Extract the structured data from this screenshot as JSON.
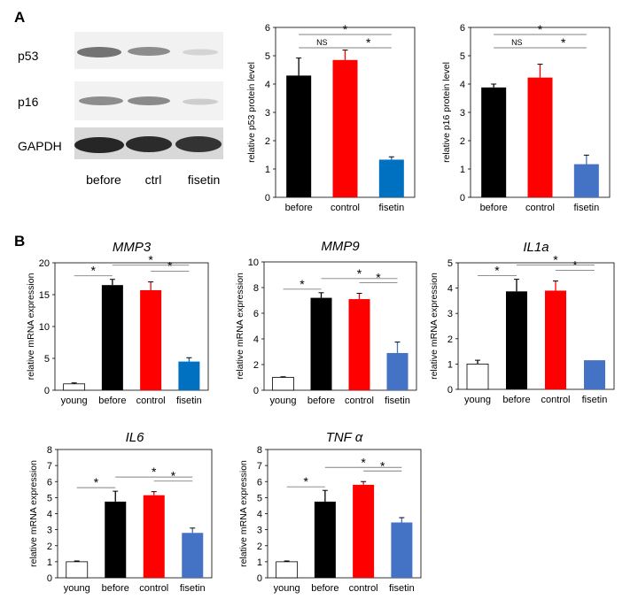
{
  "panels": [
    {
      "label": "A"
    },
    {
      "label": "B"
    }
  ],
  "western_blot": {
    "rows": [
      "p53",
      "p16",
      "GAPDH"
    ],
    "lanes": [
      "before",
      "ctrl",
      "fisetin"
    ]
  },
  "chart_data": [
    {
      "type": "bar",
      "title": "",
      "ylabel": "relative p53 protein level",
      "xlabel": "",
      "categories": [
        "before",
        "control",
        "fisetin"
      ],
      "values": [
        4.3,
        4.85,
        1.33
      ],
      "errors": [
        0.62,
        0.35,
        0.1
      ],
      "colors": [
        "#000000",
        "#ff0000",
        "#0070c0"
      ],
      "ylim": [
        0,
        6
      ],
      "yticks": [
        "0",
        "1",
        "2",
        "3",
        "4",
        "5",
        "6"
      ],
      "significance": [
        {
          "from": 0,
          "to": 1,
          "text": "NS"
        },
        {
          "from": 1,
          "to": 2,
          "text": "*"
        },
        {
          "from": 0,
          "to": 2,
          "text": "*"
        }
      ]
    },
    {
      "type": "bar",
      "title": "",
      "ylabel": "relative p16 protein level",
      "xlabel": "",
      "categories": [
        "before",
        "control",
        "fisetin"
      ],
      "values": [
        3.88,
        4.23,
        1.17
      ],
      "errors": [
        0.12,
        0.47,
        0.32
      ],
      "colors": [
        "#000000",
        "#ff0000",
        "#4472c4"
      ],
      "ylim": [
        0,
        6
      ],
      "yticks": [
        "0",
        "1",
        "2",
        "3",
        "4",
        "5",
        "6"
      ],
      "significance": [
        {
          "from": 0,
          "to": 1,
          "text": "NS"
        },
        {
          "from": 1,
          "to": 2,
          "text": "*"
        },
        {
          "from": 0,
          "to": 2,
          "text": "*"
        }
      ]
    },
    {
      "type": "bar",
      "title": "MMP3",
      "ylabel": "relative mRNA expression",
      "xlabel": "",
      "categories": [
        "young",
        "before",
        "control",
        "fisetin"
      ],
      "values": [
        1.0,
        16.5,
        15.7,
        4.5
      ],
      "errors": [
        0.15,
        0.9,
        1.3,
        0.6
      ],
      "colors": [
        "#ffffff",
        "#000000",
        "#ff0000",
        "#0070c0"
      ],
      "ylim": [
        0,
        20
      ],
      "yticks": [
        "0",
        "5",
        "10",
        "15",
        "20"
      ],
      "significance": [
        {
          "from": 0,
          "to": 1,
          "text": "*"
        },
        {
          "from": 2,
          "to": 3,
          "text": "*"
        },
        {
          "from": 1,
          "to": 3,
          "text": "*"
        }
      ]
    },
    {
      "type": "bar",
      "title": "MMP9",
      "ylabel": "relative mRNA expression",
      "xlabel": "",
      "categories": [
        "young",
        "before",
        "control",
        "fisetin"
      ],
      "values": [
        1.0,
        7.2,
        7.1,
        2.9
      ],
      "errors": [
        0.05,
        0.4,
        0.45,
        0.85
      ],
      "colors": [
        "#ffffff",
        "#000000",
        "#ff0000",
        "#4472c4"
      ],
      "ylim": [
        0,
        10
      ],
      "yticks": [
        "0",
        "2",
        "4",
        "6",
        "8",
        "10"
      ],
      "significance": [
        {
          "from": 0,
          "to": 1,
          "text": "*"
        },
        {
          "from": 2,
          "to": 3,
          "text": "*"
        },
        {
          "from": 1,
          "to": 3,
          "text": "*"
        }
      ]
    },
    {
      "type": "bar",
      "title": "IL1a",
      "ylabel": "relative mRNA expression",
      "xlabel": "",
      "categories": [
        "young",
        "before",
        "control",
        "fisetin"
      ],
      "values": [
        1.0,
        3.87,
        3.9,
        1.15
      ],
      "errors": [
        0.15,
        0.48,
        0.38,
        0.0
      ],
      "colors": [
        "#ffffff",
        "#000000",
        "#ff0000",
        "#4472c4"
      ],
      "ylim": [
        0,
        5
      ],
      "yticks": [
        "0",
        "1",
        "2",
        "3",
        "4",
        "5"
      ],
      "significance": [
        {
          "from": 0,
          "to": 1,
          "text": "*"
        },
        {
          "from": 2,
          "to": 3,
          "text": "*"
        },
        {
          "from": 1,
          "to": 3,
          "text": "*"
        }
      ]
    },
    {
      "type": "bar",
      "title": "IL6",
      "ylabel": "relative mRNA expression",
      "xlabel": "",
      "categories": [
        "young",
        "before",
        "control",
        "fisetin"
      ],
      "values": [
        1.0,
        4.75,
        5.15,
        2.8
      ],
      "errors": [
        0.05,
        0.65,
        0.22,
        0.3
      ],
      "colors": [
        "#ffffff",
        "#000000",
        "#ff0000",
        "#4472c4"
      ],
      "ylim": [
        0,
        8
      ],
      "yticks": [
        "0",
        "1",
        "2",
        "3",
        "4",
        "5",
        "6",
        "7",
        "8"
      ],
      "significance": [
        {
          "from": 0,
          "to": 1,
          "text": "*"
        },
        {
          "from": 2,
          "to": 3,
          "text": "*"
        },
        {
          "from": 1,
          "to": 3,
          "text": "*"
        }
      ]
    },
    {
      "type": "bar",
      "title": "TNF α",
      "ylabel": "relative mRNA expression",
      "xlabel": "",
      "categories": [
        "young",
        "before",
        "control",
        "fisetin"
      ],
      "values": [
        1.0,
        4.75,
        5.8,
        3.45
      ],
      "errors": [
        0.05,
        0.7,
        0.2,
        0.3
      ],
      "colors": [
        "#ffffff",
        "#000000",
        "#ff0000",
        "#4472c4"
      ],
      "ylim": [
        0,
        8
      ],
      "yticks": [
        "0",
        "1",
        "2",
        "3",
        "4",
        "5",
        "6",
        "7",
        "8"
      ],
      "significance": [
        {
          "from": 0,
          "to": 1,
          "text": "*"
        },
        {
          "from": 2,
          "to": 3,
          "text": "*"
        },
        {
          "from": 1,
          "to": 3,
          "text": "*"
        }
      ]
    }
  ]
}
